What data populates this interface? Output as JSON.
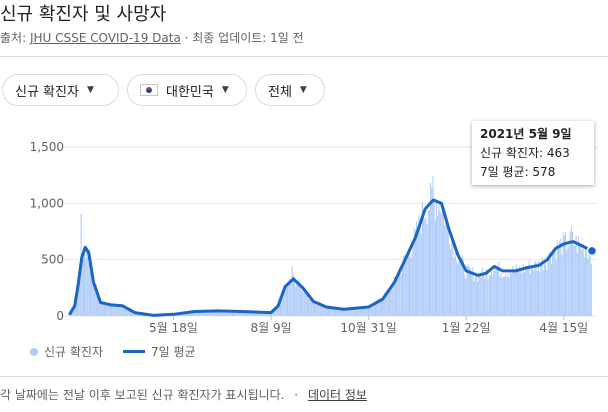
{
  "header": {
    "title": "신규 확진자 및 사망자",
    "source_prefix": "출처:",
    "source_link": "JHU CSSE COVID-19 Data",
    "source_suffix": "· 최종 업데이트: 1일 전"
  },
  "filters": [
    {
      "label": "신규 확진자"
    },
    {
      "label": "대한민국",
      "icon": "south-korea-flag-icon"
    },
    {
      "label": "전체"
    }
  ],
  "tooltip": {
    "date": "2021년 5월 9일",
    "cases": "신규 확진자: 463",
    "avg": "7일 평균: 578"
  },
  "legend": {
    "cases": "신규 확진자",
    "avg": "7일 평균"
  },
  "footer": {
    "note": "각 날짜에는 전날 이후 보고된 신규 확진자가 표시됩니다.",
    "sep": "·",
    "link": "데이터 정보"
  },
  "colors": {
    "bar": "#aecbfa",
    "line": "#1a65c5",
    "grid": "#e8eaed",
    "axis_text": "#5f6368"
  },
  "chart_data": {
    "type": "bar",
    "ylim": [
      0,
      1500
    ],
    "y_ticks": [
      0,
      500,
      1000,
      1500
    ],
    "y_tick_labels": [
      "0",
      "500",
      "1,000",
      "1,500"
    ],
    "x_ticks": [
      {
        "date": "2020-05-18",
        "label": "5월 18일"
      },
      {
        "date": "2020-08-09",
        "label": "8월 9일"
      },
      {
        "date": "2020-10-31",
        "label": "10월 31일"
      },
      {
        "date": "2021-01-22",
        "label": "1월 22일"
      },
      {
        "date": "2021-04-15",
        "label": "4월 15일"
      }
    ],
    "x_range": [
      "2020-02-20",
      "2021-05-09"
    ],
    "series": [
      {
        "name": "7일 평균",
        "style": "line",
        "points": [
          [
            "2020-02-20",
            20
          ],
          [
            "2020-02-24",
            90
          ],
          [
            "2020-02-27",
            280
          ],
          [
            "2020-03-01",
            520
          ],
          [
            "2020-03-04",
            610
          ],
          [
            "2020-03-07",
            560
          ],
          [
            "2020-03-11",
            300
          ],
          [
            "2020-03-17",
            120
          ],
          [
            "2020-03-25",
            100
          ],
          [
            "2020-04-05",
            90
          ],
          [
            "2020-04-15",
            30
          ],
          [
            "2020-05-01",
            5
          ],
          [
            "2020-05-18",
            15
          ],
          [
            "2020-06-05",
            40
          ],
          [
            "2020-06-25",
            45
          ],
          [
            "2020-07-15",
            40
          ],
          [
            "2020-08-09",
            30
          ],
          [
            "2020-08-15",
            90
          ],
          [
            "2020-08-21",
            260
          ],
          [
            "2020-08-28",
            330
          ],
          [
            "2020-09-05",
            250
          ],
          [
            "2020-09-14",
            130
          ],
          [
            "2020-09-25",
            80
          ],
          [
            "2020-10-10",
            60
          ],
          [
            "2020-10-31",
            80
          ],
          [
            "2020-11-12",
            150
          ],
          [
            "2020-11-22",
            300
          ],
          [
            "2020-12-01",
            500
          ],
          [
            "2020-12-10",
            700
          ],
          [
            "2020-12-18",
            950
          ],
          [
            "2020-12-25",
            1030
          ],
          [
            "2021-01-01",
            1000
          ],
          [
            "2021-01-07",
            780
          ],
          [
            "2021-01-15",
            540
          ],
          [
            "2021-01-22",
            400
          ],
          [
            "2021-02-01",
            360
          ],
          [
            "2021-02-08",
            380
          ],
          [
            "2021-02-15",
            440
          ],
          [
            "2021-02-22",
            400
          ],
          [
            "2021-03-05",
            400
          ],
          [
            "2021-03-15",
            430
          ],
          [
            "2021-03-25",
            450
          ],
          [
            "2021-04-01",
            500
          ],
          [
            "2021-04-08",
            600
          ],
          [
            "2021-04-15",
            640
          ],
          [
            "2021-04-23",
            660
          ],
          [
            "2021-05-01",
            620
          ],
          [
            "2021-05-09",
            578
          ]
        ]
      },
      {
        "name": "신규 확진자",
        "style": "bar",
        "selected_point": [
          "2021-05-09",
          463
        ],
        "peaks": [
          [
            "2020-02-29",
            909
          ],
          [
            "2020-08-27",
            441
          ],
          [
            "2020-12-25",
            1241
          ],
          [
            "2021-04-22",
            797
          ]
        ]
      }
    ]
  }
}
